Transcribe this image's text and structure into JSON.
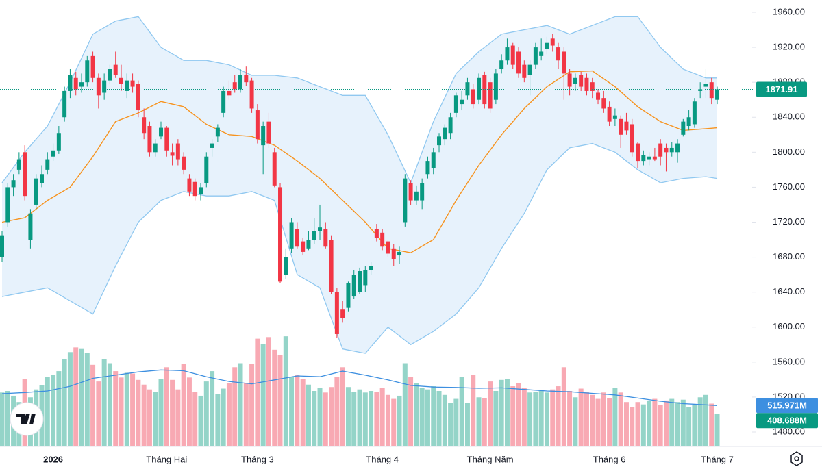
{
  "chart_data": {
    "type": "candlestick",
    "up_color": "#089981",
    "down_color": "#f23645",
    "volume_up_color": "#94d4c8",
    "volume_down_color": "#f8a9b3",
    "band_color": "#90c8f0",
    "band_fill": "#e3f0fc",
    "basis_color": "#f7931e",
    "volume_ma_color": "#3d8fe0",
    "grid": false,
    "ylim": [
      1480,
      1960
    ],
    "yticks": [
      {
        "value": 1960,
        "label": "1960.00"
      },
      {
        "value": 1920,
        "label": "1920.00"
      },
      {
        "value": 1880,
        "label": "1880.00"
      },
      {
        "value": 1840,
        "label": "1840.00"
      },
      {
        "value": 1800,
        "label": "1800.00"
      },
      {
        "value": 1760,
        "label": "1760.00"
      },
      {
        "value": 1720,
        "label": "1720.00"
      },
      {
        "value": 1680,
        "label": "1680.00"
      },
      {
        "value": 1640,
        "label": "1640.00"
      },
      {
        "value": 1600,
        "label": "1600.00"
      },
      {
        "value": 1560,
        "label": "1560.00"
      },
      {
        "value": 1520,
        "label": "1520.00"
      },
      {
        "value": 1480,
        "label": "1480.00"
      }
    ],
    "volume_ylim": [
      0,
      1400
    ],
    "last_price_label": "1871.91",
    "volume_ma_label": "515.971M",
    "last_volume_label": "408.688M",
    "categories": [
      null,
      null,
      null,
      null,
      null,
      null,
      null,
      null,
      null,
      "2026",
      null,
      null,
      null,
      null,
      null,
      null,
      null,
      null,
      null,
      null,
      null,
      null,
      null,
      null,
      null,
      null,
      null,
      null,
      null,
      "Tháng Hai",
      null,
      null,
      null,
      null,
      null,
      null,
      null,
      null,
      null,
      null,
      null,
      null,
      null,
      null,
      null,
      "Tháng 3",
      null,
      null,
      null,
      null,
      null,
      null,
      null,
      null,
      null,
      null,
      null,
      null,
      null,
      null,
      null,
      null,
      null,
      null,
      null,
      null,
      null,
      "Tháng 4",
      null,
      null,
      null,
      null,
      null,
      null,
      null,
      null,
      null,
      null,
      null,
      null,
      null,
      null,
      null,
      null,
      null,
      null,
      "Tháng Năm",
      null,
      null,
      null,
      null,
      null,
      null,
      null,
      null,
      null,
      null,
      null,
      null,
      null,
      null,
      null,
      null,
      null,
      null,
      null,
      null,
      "Tháng 6",
      null,
      null,
      null,
      null,
      null,
      null,
      null,
      null,
      null,
      null,
      null,
      null,
      null,
      null,
      null,
      null,
      null,
      null,
      "Tháng 7"
    ],
    "candles": [
      [
        1680,
        1710,
        1675,
        1705
      ],
      [
        1720,
        1765,
        1715,
        1760
      ],
      [
        1760,
        1775,
        1750,
        1768
      ],
      [
        1780,
        1800,
        1775,
        1792
      ],
      [
        1800,
        1808,
        1745,
        1750
      ],
      [
        1700,
        1735,
        1690,
        1730
      ],
      [
        1740,
        1775,
        1735,
        1770
      ],
      [
        1765,
        1785,
        1760,
        1775
      ],
      [
        1780,
        1800,
        1775,
        1792
      ],
      [
        1795,
        1810,
        1790,
        1802
      ],
      [
        1802,
        1830,
        1798,
        1822
      ],
      [
        1840,
        1875,
        1835,
        1870
      ],
      [
        1870,
        1895,
        1862,
        1888
      ],
      [
        1885,
        1892,
        1865,
        1872
      ],
      [
        1875,
        1890,
        1868,
        1880
      ],
      [
        1880,
        1910,
        1875,
        1905
      ],
      [
        1910,
        1915,
        1880,
        1885
      ],
      [
        1885,
        1890,
        1850,
        1865
      ],
      [
        1868,
        1890,
        1860,
        1882
      ],
      [
        1882,
        1900,
        1878,
        1895
      ],
      [
        1900,
        1915,
        1885,
        1888
      ],
      [
        1885,
        1900,
        1870,
        1878
      ],
      [
        1870,
        1890,
        1862,
        1882
      ],
      [
        1882,
        1890,
        1868,
        1875
      ],
      [
        1878,
        1882,
        1840,
        1848
      ],
      [
        1840,
        1850,
        1815,
        1822
      ],
      [
        1830,
        1835,
        1795,
        1800
      ],
      [
        1800,
        1815,
        1795,
        1810
      ],
      [
        1818,
        1835,
        1815,
        1828
      ],
      [
        1828,
        1830,
        1795,
        1802
      ],
      [
        1800,
        1810,
        1785,
        1796
      ],
      [
        1810,
        1815,
        1785,
        1792
      ],
      [
        1795,
        1800,
        1775,
        1780
      ],
      [
        1770,
        1775,
        1750,
        1755
      ],
      [
        1766,
        1770,
        1745,
        1750
      ],
      [
        1752,
        1765,
        1745,
        1760
      ],
      [
        1765,
        1800,
        1760,
        1795
      ],
      [
        1805,
        1815,
        1795,
        1810
      ],
      [
        1818,
        1832,
        1812,
        1828
      ],
      [
        1845,
        1875,
        1840,
        1870
      ],
      [
        1870,
        1882,
        1860,
        1865
      ],
      [
        1880,
        1888,
        1868,
        1872
      ],
      [
        1872,
        1895,
        1868,
        1888
      ],
      [
        1888,
        1898,
        1876,
        1880
      ],
      [
        1882,
        1885,
        1845,
        1850
      ],
      [
        1848,
        1855,
        1810,
        1815
      ],
      [
        1808,
        1835,
        1775,
        1830
      ],
      [
        1835,
        1845,
        1805,
        1810
      ],
      [
        1800,
        1805,
        1760,
        1762
      ],
      [
        1760,
        1765,
        1650,
        1652
      ],
      [
        1660,
        1690,
        1655,
        1680
      ],
      [
        1690,
        1725,
        1685,
        1720
      ],
      [
        1712,
        1720,
        1690,
        1692
      ],
      [
        1698,
        1702,
        1682,
        1686
      ],
      [
        1690,
        1710,
        1688,
        1700
      ],
      [
        1700,
        1725,
        1695,
        1710
      ],
      [
        1710,
        1740,
        1700,
        1714
      ],
      [
        1712,
        1720,
        1690,
        1692
      ],
      [
        1700,
        1705,
        1638,
        1640
      ],
      [
        1640,
        1645,
        1588,
        1592
      ],
      [
        1620,
        1630,
        1605,
        1610
      ],
      [
        1622,
        1652,
        1618,
        1650
      ],
      [
        1635,
        1665,
        1632,
        1660
      ],
      [
        1640,
        1668,
        1638,
        1664
      ],
      [
        1648,
        1670,
        1640,
        1665
      ],
      [
        1665,
        1675,
        1660,
        1670
      ],
      [
        1712,
        1718,
        1698,
        1702
      ],
      [
        1708,
        1712,
        1688,
        1692
      ],
      [
        1698,
        1700,
        1680,
        1684
      ],
      [
        1690,
        1695,
        1670,
        1678
      ],
      [
        1682,
        1692,
        1672,
        1686
      ],
      [
        1720,
        1775,
        1715,
        1770
      ],
      [
        1765,
        1768,
        1740,
        1745
      ],
      [
        1745,
        1762,
        1740,
        1755
      ],
      [
        1745,
        1770,
        1735,
        1765
      ],
      [
        1775,
        1795,
        1770,
        1790
      ],
      [
        1782,
        1805,
        1775,
        1800
      ],
      [
        1808,
        1822,
        1800,
        1818
      ],
      [
        1815,
        1832,
        1808,
        1828
      ],
      [
        1822,
        1845,
        1815,
        1840
      ],
      [
        1845,
        1868,
        1840,
        1865
      ],
      [
        1855,
        1870,
        1848,
        1860
      ],
      [
        1865,
        1885,
        1860,
        1880
      ],
      [
        1872,
        1878,
        1850,
        1855
      ],
      [
        1860,
        1890,
        1855,
        1885
      ],
      [
        1888,
        1892,
        1850,
        1855
      ],
      [
        1880,
        1885,
        1845,
        1850
      ],
      [
        1860,
        1895,
        1855,
        1890
      ],
      [
        1895,
        1912,
        1890,
        1905
      ],
      [
        1905,
        1930,
        1900,
        1920
      ],
      [
        1922,
        1925,
        1895,
        1900
      ],
      [
        1915,
        1920,
        1885,
        1890
      ],
      [
        1900,
        1905,
        1880,
        1885
      ],
      [
        1888,
        1905,
        1865,
        1900
      ],
      [
        1900,
        1925,
        1895,
        1920
      ],
      [
        1910,
        1930,
        1905,
        1915
      ],
      [
        1918,
        1932,
        1912,
        1925
      ],
      [
        1930,
        1935,
        1915,
        1922
      ],
      [
        1920,
        1925,
        1895,
        1905
      ],
      [
        1915,
        1920,
        1860,
        1890
      ],
      [
        1890,
        1895,
        1865,
        1875
      ],
      [
        1878,
        1890,
        1870,
        1885
      ],
      [
        1888,
        1892,
        1870,
        1875
      ],
      [
        1885,
        1890,
        1865,
        1870
      ],
      [
        1880,
        1885,
        1862,
        1870
      ],
      [
        1868,
        1872,
        1855,
        1860
      ],
      [
        1862,
        1870,
        1845,
        1850
      ],
      [
        1852,
        1858,
        1830,
        1835
      ],
      [
        1838,
        1850,
        1830,
        1842
      ],
      [
        1838,
        1842,
        1805,
        1820
      ],
      [
        1835,
        1845,
        1820,
        1825
      ],
      [
        1832,
        1838,
        1795,
        1800
      ],
      [
        1810,
        1812,
        1782,
        1790
      ],
      [
        1790,
        1802,
        1785,
        1797
      ],
      [
        1792,
        1800,
        1785,
        1795
      ],
      [
        1795,
        1805,
        1790,
        1792
      ],
      [
        1810,
        1815,
        1785,
        1795
      ],
      [
        1805,
        1810,
        1778,
        1800
      ],
      [
        1800,
        1812,
        1795,
        1805
      ],
      [
        1800,
        1815,
        1788,
        1810
      ],
      [
        1820,
        1838,
        1818,
        1835
      ],
      [
        1830,
        1848,
        1825,
        1840
      ],
      [
        1832,
        1862,
        1828,
        1858
      ],
      [
        1870,
        1880,
        1862,
        1872
      ],
      [
        1875,
        1895,
        1862,
        1878
      ],
      [
        1880,
        1885,
        1855,
        1862
      ],
      [
        1860,
        1875,
        1855,
        1871.91
      ]
    ],
    "volume": [
      680,
      700,
      640,
      560,
      850,
      620,
      720,
      770,
      880,
      900,
      950,
      1100,
      1190,
      1250,
      1230,
      1180,
      1030,
      820,
      1100,
      1050,
      950,
      870,
      930,
      920,
      840,
      780,
      720,
      690,
      850,
      1000,
      840,
      720,
      1040,
      870,
      690,
      640,
      820,
      950,
      660,
      730,
      800,
      1000,
      1050,
      800,
      1040,
      1360,
      1290,
      1380,
      1220,
      1150,
      1390,
      880,
      900,
      850,
      780,
      700,
      740,
      680,
      750,
      880,
      1000,
      750,
      690,
      720,
      680,
      700,
      690,
      740,
      650,
      600,
      640,
      1050,
      880,
      800,
      740,
      720,
      760,
      700,
      650,
      550,
      600,
      880,
      550,
      900,
      620,
      610,
      820,
      700,
      840,
      850,
      760,
      800,
      740,
      680,
      690,
      700,
      680,
      720,
      760,
      1000,
      700,
      620,
      730,
      690,
      650,
      600,
      680,
      610,
      740,
      680,
      560,
      500,
      560,
      530,
      580,
      600,
      520,
      580,
      600,
      560,
      590,
      500,
      520,
      620,
      650,
      540,
      408.688
    ],
    "indicators": {
      "x": [
        0,
        4,
        8,
        12,
        16,
        20,
        24,
        28,
        32,
        36,
        40,
        44,
        48,
        52,
        56,
        60,
        64,
        68,
        72,
        76,
        80,
        84,
        88,
        92,
        96,
        100,
        104,
        108,
        112,
        116,
        120,
        124,
        126
      ],
      "upper": [
        1765,
        1800,
        1830,
        1880,
        1935,
        1950,
        1955,
        1920,
        1905,
        1905,
        1900,
        1888,
        1888,
        1885,
        1875,
        1865,
        1865,
        1820,
        1765,
        1835,
        1890,
        1915,
        1935,
        1940,
        1945,
        1935,
        1945,
        1955,
        1955,
        1920,
        1895,
        1885,
        1885
      ],
      "basis": [
        1720,
        1725,
        1745,
        1760,
        1795,
        1835,
        1845,
        1858,
        1852,
        1832,
        1820,
        1818,
        1808,
        1790,
        1770,
        1745,
        1720,
        1690,
        1685,
        1700,
        1745,
        1785,
        1820,
        1850,
        1875,
        1892,
        1893,
        1875,
        1852,
        1835,
        1825,
        1827,
        1828
      ],
      "lower": [
        1635,
        1640,
        1645,
        1630,
        1615,
        1670,
        1720,
        1745,
        1755,
        1750,
        1750,
        1755,
        1745,
        1660,
        1645,
        1575,
        1570,
        1600,
        1580,
        1595,
        1615,
        1645,
        1690,
        1730,
        1780,
        1805,
        1810,
        1800,
        1780,
        1765,
        1770,
        1772,
        1770
      ],
      "volume_ma": [
        665,
        680,
        700,
        760,
        860,
        900,
        940,
        965,
        955,
        880,
        820,
        790,
        840,
        890,
        880,
        950,
        900,
        840,
        770,
        750,
        745,
        735,
        740,
        720,
        700,
        690,
        670,
        650,
        610,
        570,
        540,
        525,
        515.971
      ]
    }
  }
}
